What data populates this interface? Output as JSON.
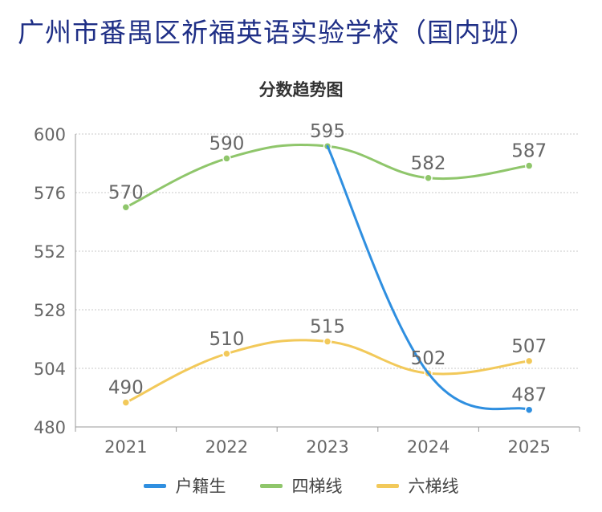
{
  "page": {
    "title": "广州市番禺区祈福英语实验学校（国内班）"
  },
  "colors": {
    "title": "#1f2f86",
    "grid": "#c8c8c8",
    "axis": "#999999",
    "text": "#666666"
  },
  "chart_data": {
    "type": "line",
    "title": "分数趋势图",
    "xlabel": "",
    "ylabel": "",
    "categories": [
      "2021",
      "2022",
      "2023",
      "2024",
      "2025"
    ],
    "ylim": [
      480,
      600
    ],
    "yticks": [
      480,
      504,
      528,
      552,
      576,
      600
    ],
    "grid": true,
    "legend_position": "bottom",
    "series": [
      {
        "name": "户籍生",
        "color": "#2f8fe0",
        "values": [
          null,
          null,
          595,
          502,
          487
        ],
        "labels": [
          null,
          null,
          null,
          null,
          "487"
        ]
      },
      {
        "name": "四梯线",
        "color": "#8fc66b",
        "values": [
          570,
          590,
          595,
          582,
          587
        ],
        "labels": [
          "570",
          "590",
          "595",
          "582",
          "587"
        ]
      },
      {
        "name": "六梯线",
        "color": "#f2c95a",
        "values": [
          490,
          510,
          515,
          502,
          507
        ],
        "labels": [
          "490",
          "510",
          "515",
          "502",
          "507"
        ]
      }
    ]
  }
}
